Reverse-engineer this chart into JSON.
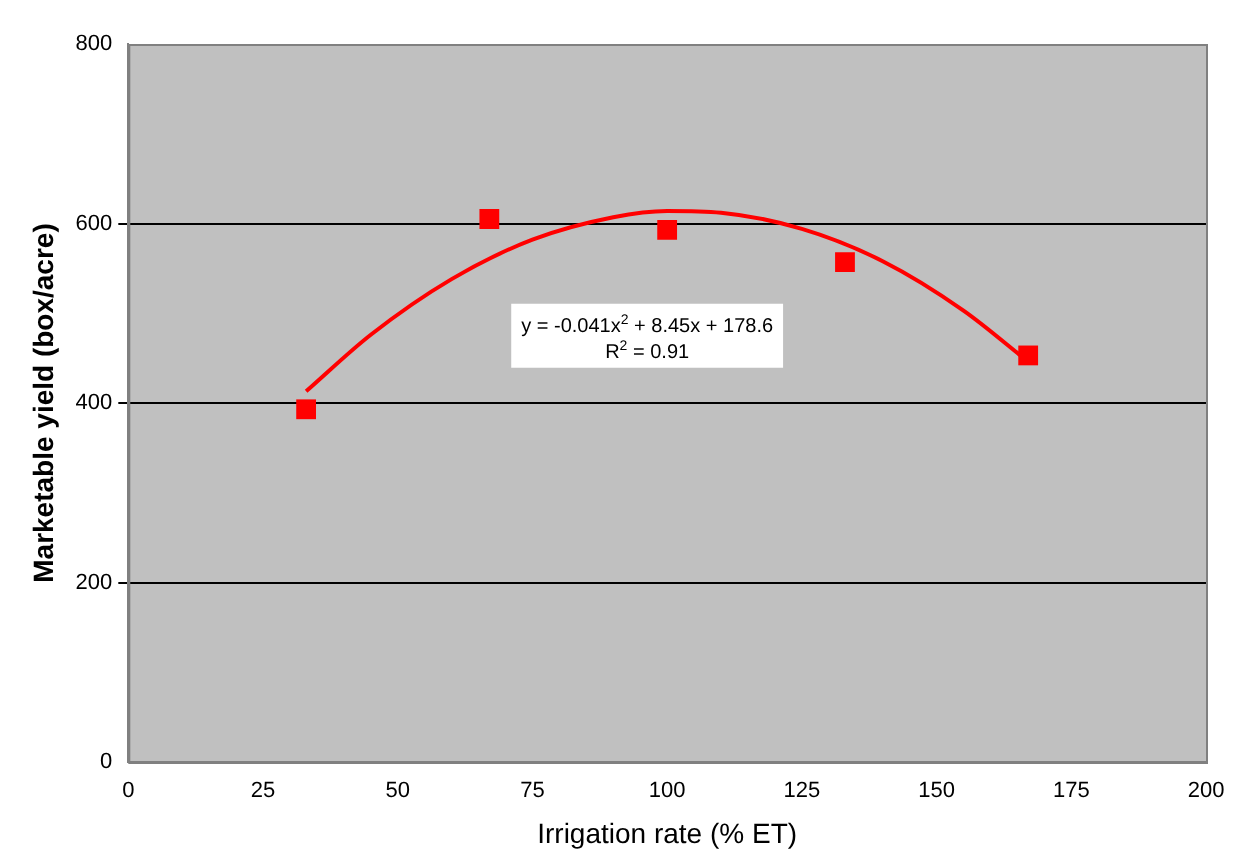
{
  "chart_data": {
    "type": "scatter",
    "xlabel": "Irrigation rate (% ET)",
    "ylabel": "Marketable yield (box/acre)",
    "x": [
      33,
      67,
      100,
      133,
      167
    ],
    "series": [
      {
        "type": "scatter",
        "color": "#ff0000",
        "values": [
          393,
          605,
          593,
          557,
          453
        ],
        "marker": "square"
      },
      {
        "type": "line",
        "color": "#ff0000",
        "x": [
          33,
          45,
          60,
          75,
          90,
          100,
          110,
          125,
          140,
          155,
          167
        ],
        "values": [
          413,
          476,
          538,
          582,
          607,
          614,
          612,
          594,
          558,
          503,
          446
        ],
        "marker": "none",
        "line_style": "solid"
      }
    ],
    "annotations": [
      "y = -0.041x$^{2}$ + 8.45x + 178.6",
      "R$^{2}$ = 0.91"
    ],
    "xlim": [
      0,
      200
    ],
    "xticks": [
      0,
      25,
      50,
      75,
      100,
      125,
      150,
      175,
      200
    ],
    "ylim": [
      0,
      800
    ],
    "yticks": [
      0,
      200,
      400,
      600,
      800
    ],
    "grid": "y",
    "legend": false
  }
}
